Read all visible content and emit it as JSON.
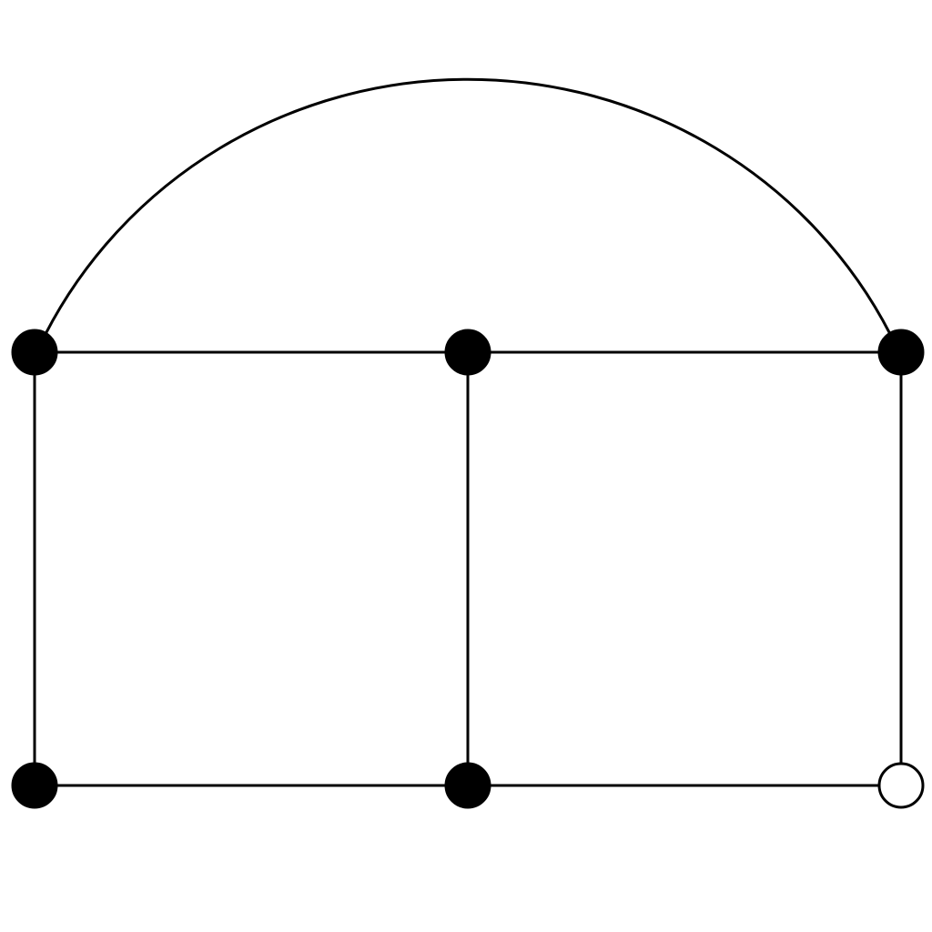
{
  "diagram": {
    "type": "graph",
    "nodes": [
      {
        "id": "top-left",
        "style": "filled"
      },
      {
        "id": "top-middle",
        "style": "filled"
      },
      {
        "id": "top-right",
        "style": "filled"
      },
      {
        "id": "bottom-left",
        "style": "filled"
      },
      {
        "id": "bottom-middle",
        "style": "filled"
      },
      {
        "id": "bottom-right",
        "style": "hollow"
      }
    ],
    "edges": [
      {
        "from": "top-left",
        "to": "top-middle",
        "shape": "straight"
      },
      {
        "from": "top-middle",
        "to": "top-right",
        "shape": "straight"
      },
      {
        "from": "top-left",
        "to": "bottom-left",
        "shape": "straight"
      },
      {
        "from": "top-middle",
        "to": "bottom-middle",
        "shape": "straight"
      },
      {
        "from": "top-right",
        "to": "bottom-right",
        "shape": "straight"
      },
      {
        "from": "bottom-left",
        "to": "bottom-middle",
        "shape": "straight"
      },
      {
        "from": "bottom-middle",
        "to": "bottom-right",
        "shape": "straight"
      },
      {
        "from": "top-left",
        "to": "top-right",
        "shape": "arc"
      }
    ],
    "colors": {
      "stroke": "#000000",
      "filled_node": "#000000",
      "hollow_node": "#ffffff",
      "background": "#ffffff"
    }
  }
}
